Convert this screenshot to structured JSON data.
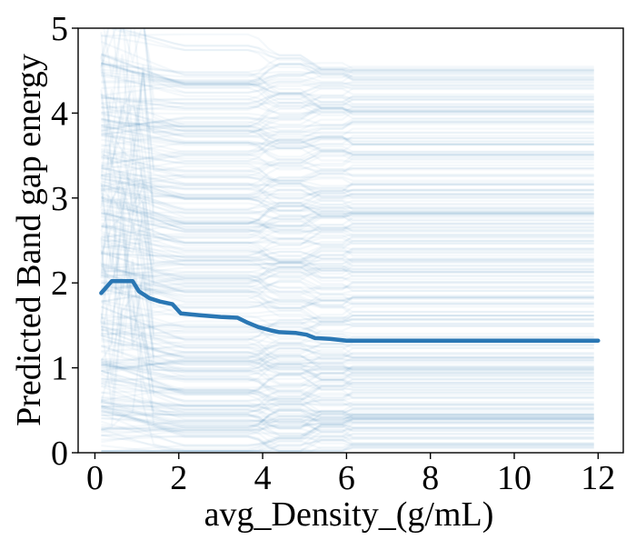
{
  "chart_data": {
    "type": "line",
    "title": "",
    "xlabel": "avg_Density_(g/mL)",
    "ylabel": "Predicted Band gap energy",
    "xlim": [
      -0.4,
      12.6
    ],
    "ylim": [
      0,
      5
    ],
    "xticks": [
      "0",
      "2",
      "4",
      "6",
      "8",
      "10",
      "12"
    ],
    "yticks": [
      "0",
      "1",
      "2",
      "3",
      "4",
      "5"
    ],
    "grid": false,
    "legend": "none",
    "colors": {
      "average_line": "#2a77b4",
      "ice_lines": "#2a77b4",
      "axes": "#000000"
    },
    "series": [
      {
        "x": [
          0.15,
          0.4,
          0.6,
          0.9,
          1.05,
          1.3,
          1.55,
          1.85,
          2.05,
          2.5,
          3.0,
          3.4,
          3.65,
          3.9,
          4.2,
          4.4,
          4.8,
          5.05,
          5.25,
          5.6,
          6.0,
          6.5,
          8,
          10,
          12
        ],
        "values": [
          1.88,
          2.02,
          2.02,
          2.02,
          1.9,
          1.82,
          1.78,
          1.75,
          1.64,
          1.62,
          1.6,
          1.59,
          1.53,
          1.48,
          1.44,
          1.42,
          1.41,
          1.39,
          1.35,
          1.34,
          1.32,
          1.32,
          1.32,
          1.32,
          1.32
        ]
      }
    ],
    "ice_background": {
      "count": 320,
      "x_range": [
        0.15,
        12
      ],
      "opacity": 0.05
    }
  }
}
